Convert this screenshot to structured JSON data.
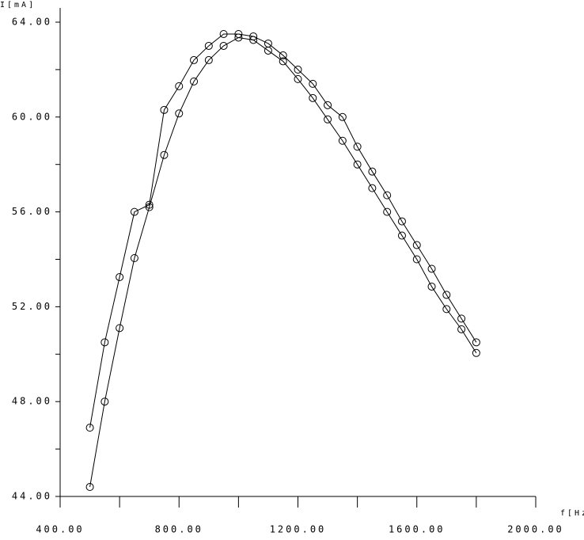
{
  "chart_data": {
    "type": "line",
    "ylabel": "I[mA]",
    "xlabel": "f[Hz]",
    "x": [
      500,
      550,
      600,
      650,
      700,
      750,
      800,
      850,
      900,
      950,
      1000,
      1050,
      1100,
      1150,
      1200,
      1250,
      1300,
      1350,
      1400,
      1450,
      1500,
      1550,
      1600,
      1650,
      1700,
      1750,
      1800
    ],
    "series": [
      {
        "color": "#000000",
        "marker": "circle",
        "values": [
          46.9,
          50.5,
          53.25,
          56.0,
          56.3,
          60.3,
          61.3,
          62.4,
          63.0,
          63.5,
          63.5,
          63.4,
          63.1,
          62.6,
          62.0,
          61.4,
          60.5,
          60.0,
          58.75,
          57.7,
          56.7,
          55.6,
          54.6,
          53.6,
          52.5,
          51.5,
          50.5
        ]
      },
      {
        "color": "#000000",
        "marker": "circle",
        "values": [
          44.4,
          48.0,
          51.1,
          54.05,
          56.2,
          58.4,
          60.15,
          61.5,
          62.4,
          63.0,
          63.35,
          63.25,
          62.8,
          62.35,
          61.6,
          60.8,
          59.9,
          59.0,
          58.0,
          57.0,
          56.0,
          55.0,
          54.0,
          52.85,
          51.9,
          51.05,
          50.05
        ]
      }
    ],
    "xlim": [
      400,
      2000
    ],
    "xticks": [
      {
        "value": 400,
        "label": "400.00"
      },
      {
        "value": 800,
        "label": "800.00"
      },
      {
        "value": 1200,
        "label": "1200.00"
      },
      {
        "value": 1600,
        "label": "1600.00"
      },
      {
        "value": 2000,
        "label": "2000.00"
      }
    ],
    "xminorticks": [
      600,
      1000,
      1400,
      1800
    ],
    "ylim": [
      44,
      64
    ],
    "yticks": [
      {
        "value": 44,
        "label": "44.00"
      },
      {
        "value": 48,
        "label": "48.00"
      },
      {
        "value": 52,
        "label": "52.00"
      },
      {
        "value": 56,
        "label": "56.00"
      },
      {
        "value": 60,
        "label": "60.00"
      },
      {
        "value": 64,
        "label": "64.00"
      }
    ],
    "yminorticks": [
      46,
      50,
      54,
      58,
      62
    ],
    "grid": false
  }
}
